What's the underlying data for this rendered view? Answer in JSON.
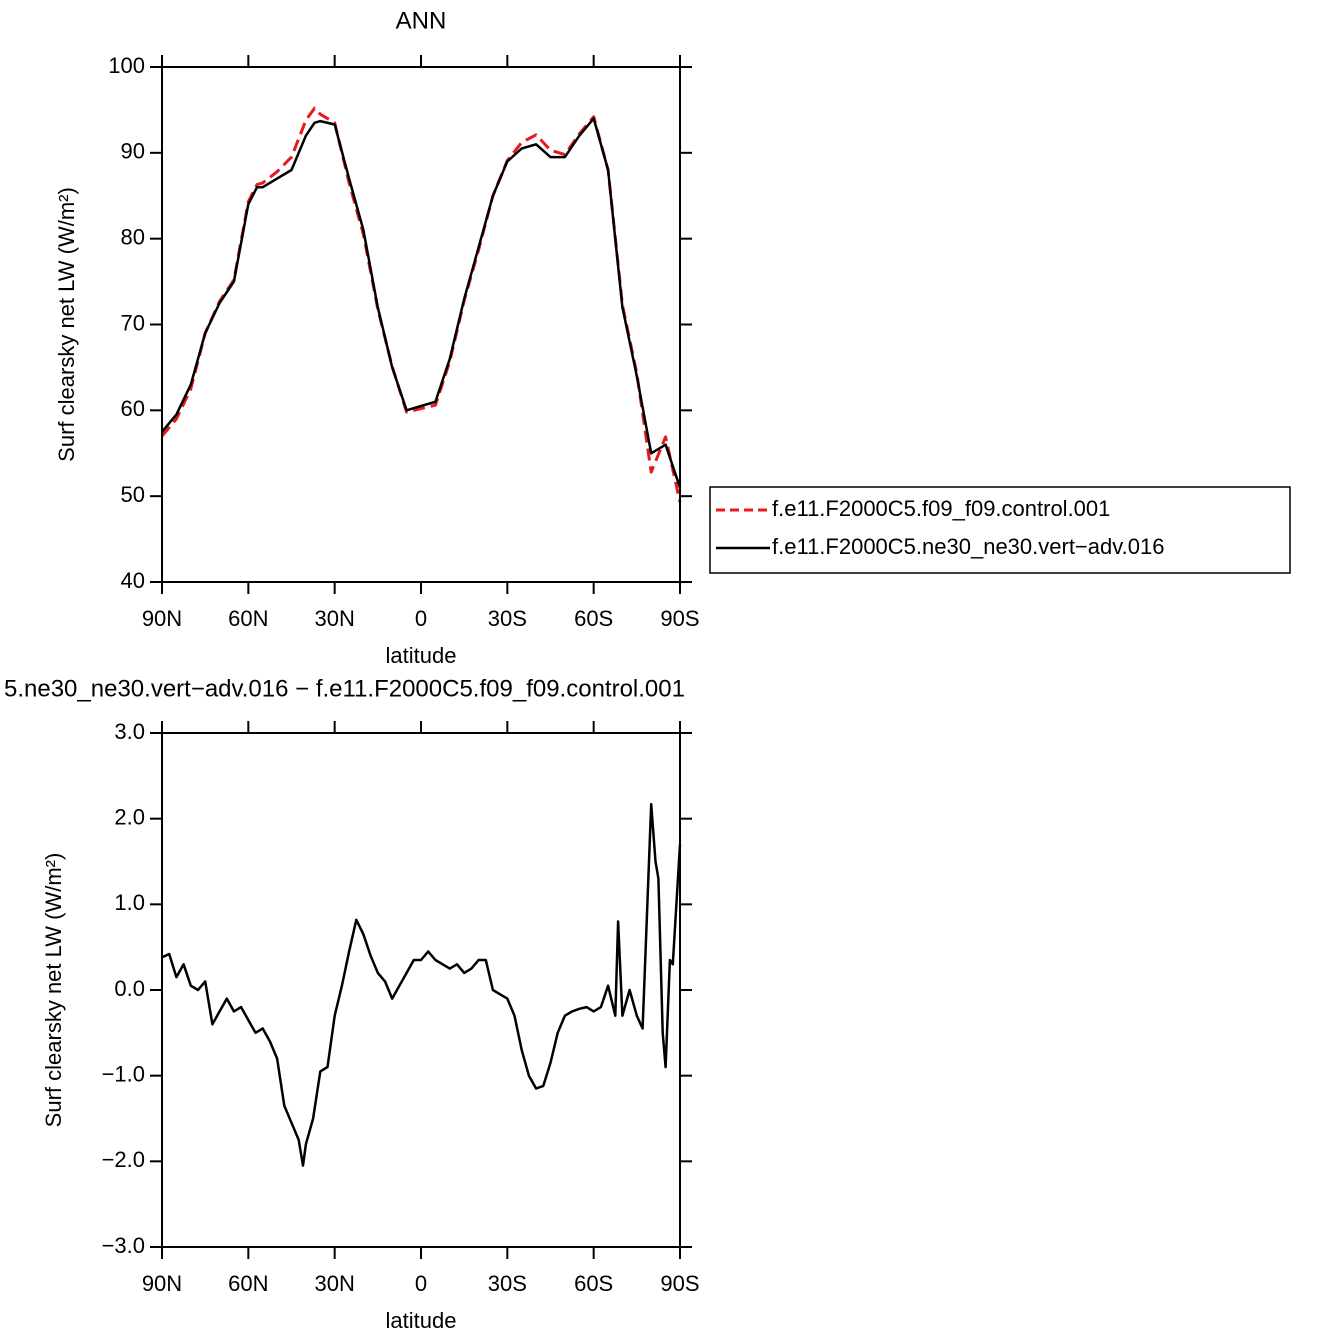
{
  "chart_data": [
    {
      "type": "line",
      "title": "ANN",
      "xlabel": "latitude",
      "ylabel": "Surf clearsky net LW (W/m²)",
      "x": [
        90,
        85,
        80,
        75,
        70,
        65,
        60,
        57,
        55,
        50,
        45,
        40,
        37,
        35,
        30,
        25,
        20,
        15,
        10,
        5,
        0,
        -5,
        -10,
        -15,
        -20,
        -25,
        -30,
        -35,
        -40,
        -45,
        -50,
        -55,
        -60,
        -65,
        -70,
        -75,
        -80,
        -85,
        -90
      ],
      "series": [
        {
          "name": "f.e11.F2000C5.f09_f09.control.001",
          "color": "#e41a1c",
          "line_style": "dashed",
          "values": [
            57,
            59,
            62.5,
            69,
            72.7,
            75.2,
            84.3,
            86.3,
            86.5,
            87.8,
            89.5,
            93.8,
            95.2,
            94.5,
            93.5,
            86.5,
            80.5,
            71.8,
            65.1,
            59.8,
            60.2,
            60.6,
            65.7,
            72.8,
            78.7,
            85,
            89.1,
            91.2,
            92.1,
            90.3,
            89.8,
            92.2,
            94.2,
            88,
            72.3,
            64.3,
            52.8,
            56.9,
            49.3
          ]
        },
        {
          "name": "f.e11.F2000C5.ne30_ne30.vert−adv.016",
          "color": "#000000",
          "line_style": "solid",
          "values": [
            57.5,
            59.5,
            63,
            69,
            72.5,
            75,
            84,
            86,
            86,
            87,
            88,
            92,
            93.5,
            93.7,
            93.3,
            87,
            81,
            72,
            65,
            60,
            60.5,
            61,
            66,
            73,
            79,
            85,
            89,
            90.5,
            91,
            89.5,
            89.5,
            92,
            94,
            88,
            72,
            64,
            55,
            56,
            51
          ]
        }
      ],
      "xlim": [
        90,
        -90
      ],
      "xticks": [
        {
          "value": 90,
          "label": "90N"
        },
        {
          "value": 60,
          "label": "60N"
        },
        {
          "value": 30,
          "label": "30N"
        },
        0,
        {
          "value": -30,
          "label": "30S"
        },
        {
          "value": -60,
          "label": "60S"
        },
        {
          "value": -90,
          "label": "90S"
        }
      ],
      "ylim": [
        40,
        100
      ],
      "yticks": [
        40,
        50,
        60,
        70,
        80,
        90,
        100
      ]
    },
    {
      "type": "line",
      "title": "5.ne30_ne30.vert−adv.016 − f.e11.F2000C5.f09_f09.control.001",
      "xlabel": "latitude",
      "ylabel": "Surf clearsky net LW (W/m²)",
      "x": [
        90,
        87.5,
        85,
        82.5,
        80,
        77.5,
        75,
        72.5,
        70,
        67.5,
        65,
        62.5,
        60,
        57.5,
        55,
        52.5,
        50,
        47.5,
        45,
        42.5,
        41,
        40,
        37.5,
        35,
        32.5,
        30,
        27.5,
        25,
        22.5,
        20,
        17.5,
        15,
        12.5,
        10,
        7.5,
        5,
        2.5,
        0,
        -2.5,
        -5,
        -7.5,
        -10,
        -12.5,
        -15,
        -17.5,
        -20,
        -22.5,
        -25,
        -27.5,
        -30,
        -32.5,
        -35,
        -37.5,
        -40,
        -42.5,
        -45,
        -47.5,
        -50,
        -52.5,
        -55,
        -57.5,
        -60,
        -62.5,
        -65,
        -67.5,
        -68.5,
        -70,
        -72.5,
        -75,
        -77,
        -80,
        -81.5,
        -82.5,
        -84,
        -85,
        -86.5,
        -87.5,
        -90
      ],
      "color": "#000000",
      "values": [
        0.38,
        0.42,
        0.15,
        0.3,
        0.05,
        0.0,
        0.1,
        -0.4,
        -0.25,
        -0.1,
        -0.25,
        -0.2,
        -0.35,
        -0.5,
        -0.45,
        -0.6,
        -0.8,
        -1.35,
        -1.55,
        -1.75,
        -2.05,
        -1.8,
        -1.5,
        -0.95,
        -0.9,
        -0.3,
        0.05,
        0.45,
        0.82,
        0.65,
        0.4,
        0.2,
        0.1,
        -0.1,
        0.05,
        0.2,
        0.35,
        0.35,
        0.45,
        0.35,
        0.3,
        0.25,
        0.3,
        0.2,
        0.25,
        0.35,
        0.35,
        0.0,
        -0.05,
        -0.1,
        -0.3,
        -0.7,
        -1.0,
        -1.15,
        -1.12,
        -0.85,
        -0.5,
        -0.3,
        -0.25,
        -0.22,
        -0.2,
        -0.25,
        -0.2,
        0.05,
        -0.3,
        0.8,
        -0.3,
        0.0,
        -0.3,
        -0.45,
        2.17,
        1.5,
        1.3,
        -0.5,
        -0.9,
        0.35,
        0.3,
        1.7
      ],
      "xlim": [
        90,
        -90
      ],
      "xticks": [
        {
          "value": 90,
          "label": "90N"
        },
        {
          "value": 60,
          "label": "60N"
        },
        {
          "value": 30,
          "label": "30N"
        },
        0,
        {
          "value": -30,
          "label": "30S"
        },
        {
          "value": -60,
          "label": "60S"
        },
        {
          "value": -90,
          "label": "90S"
        }
      ],
      "ylim": [
        -3,
        3
      ],
      "yticks": [
        {
          "value": -3,
          "label": "−3.0"
        },
        {
          "value": -2,
          "label": "−2.0"
        },
        {
          "value": -1,
          "label": "−1.0"
        },
        {
          "value": 0,
          "label": "0.0"
        },
        {
          "value": 1,
          "label": "1.0"
        },
        {
          "value": 2,
          "label": "2.0"
        },
        {
          "value": 3,
          "label": "3.0"
        }
      ]
    }
  ]
}
